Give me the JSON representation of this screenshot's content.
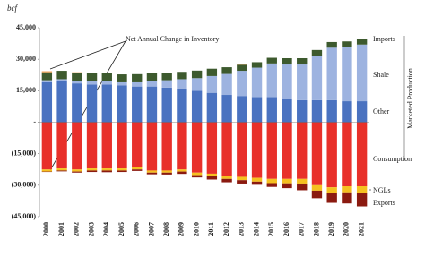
{
  "chart_data": {
    "type": "stacked-bar",
    "y_unit": "bcf",
    "annotation": "Net Annual Change in Inventory",
    "group_label": "Marketed Production",
    "categories": [
      "2000",
      "2001",
      "2002",
      "2003",
      "2004",
      "2005",
      "2006",
      "2007",
      "2008",
      "2009",
      "2010",
      "2011",
      "2012",
      "2013",
      "2014",
      "2015",
      "2016",
      "2017",
      "2018",
      "2019",
      "2020",
      "2021"
    ],
    "ylim": [
      -45000,
      45000
    ],
    "yticks": [
      {
        "value": 45000,
        "label": "45,000"
      },
      {
        "value": 30000,
        "label": "30,000"
      },
      {
        "value": 15000,
        "label": "15,000"
      },
      {
        "value": 0,
        "label": "-"
      },
      {
        "value": -15000,
        "label": "(15,000)"
      },
      {
        "value": -30000,
        "label": "(30,000)"
      },
      {
        "value": -45000,
        "label": "(45,000)"
      }
    ],
    "series": [
      {
        "name": "Other",
        "color": "#4a72c0",
        "values": [
          19000,
          19500,
          18500,
          18000,
          18000,
          17500,
          17000,
          17000,
          16500,
          16000,
          15000,
          14000,
          13000,
          12500,
          12000,
          12000,
          11000,
          10500,
          10500,
          10500,
          10000,
          10000
        ]
      },
      {
        "name": "Shale",
        "color": "#9db3e0",
        "values": [
          1000,
          1000,
          1000,
          1500,
          1500,
          1500,
          2000,
          2500,
          3500,
          4500,
          6000,
          8000,
          10000,
          12000,
          14000,
          16000,
          16500,
          17000,
          21000,
          25000,
          26000,
          27000
        ]
      },
      {
        "name": "Imports",
        "color": "#3d5a2e",
        "values": [
          3800,
          4000,
          4000,
          3900,
          3900,
          3800,
          3900,
          4100,
          3600,
          3500,
          3600,
          3500,
          3200,
          2900,
          2600,
          2700,
          3000,
          3000,
          2900,
          2700,
          2500,
          2800
        ]
      },
      {
        "name": "Net Annual Change in Inventory",
        "color": "#f0a050",
        "values": [
          500,
          0,
          300,
          0,
          0,
          0,
          0,
          0,
          0,
          0,
          0,
          0,
          0,
          300,
          0,
          0,
          0,
          0,
          0,
          0,
          0,
          0
        ]
      },
      {
        "name": "Consumption",
        "color": "#e8302a",
        "values": [
          -22500,
          -22000,
          -22500,
          -22000,
          -22000,
          -22000,
          -21500,
          -23000,
          -23000,
          -22500,
          -24000,
          -24500,
          -25500,
          -26000,
          -26500,
          -27000,
          -27000,
          -27000,
          -30000,
          -31000,
          -30500,
          -30500
        ]
      },
      {
        "name": "NGLs",
        "color": "#f5c020",
        "values": [
          -1000,
          -1000,
          -1000,
          -1000,
          -1000,
          -1000,
          -1000,
          -1000,
          -1000,
          -1000,
          -1200,
          -1300,
          -1500,
          -1600,
          -1800,
          -2000,
          -2100,
          -2200,
          -2600,
          -2800,
          -2900,
          -3000
        ]
      },
      {
        "name": "Exports",
        "color": "#8b1a10",
        "values": [
          -200,
          -400,
          -500,
          -700,
          -800,
          -700,
          -700,
          -800,
          -900,
          -1100,
          -1100,
          -1500,
          -1600,
          -1600,
          -1500,
          -1800,
          -2300,
          -3200,
          -3600,
          -4600,
          -5300,
          -6600
        ]
      }
    ]
  }
}
